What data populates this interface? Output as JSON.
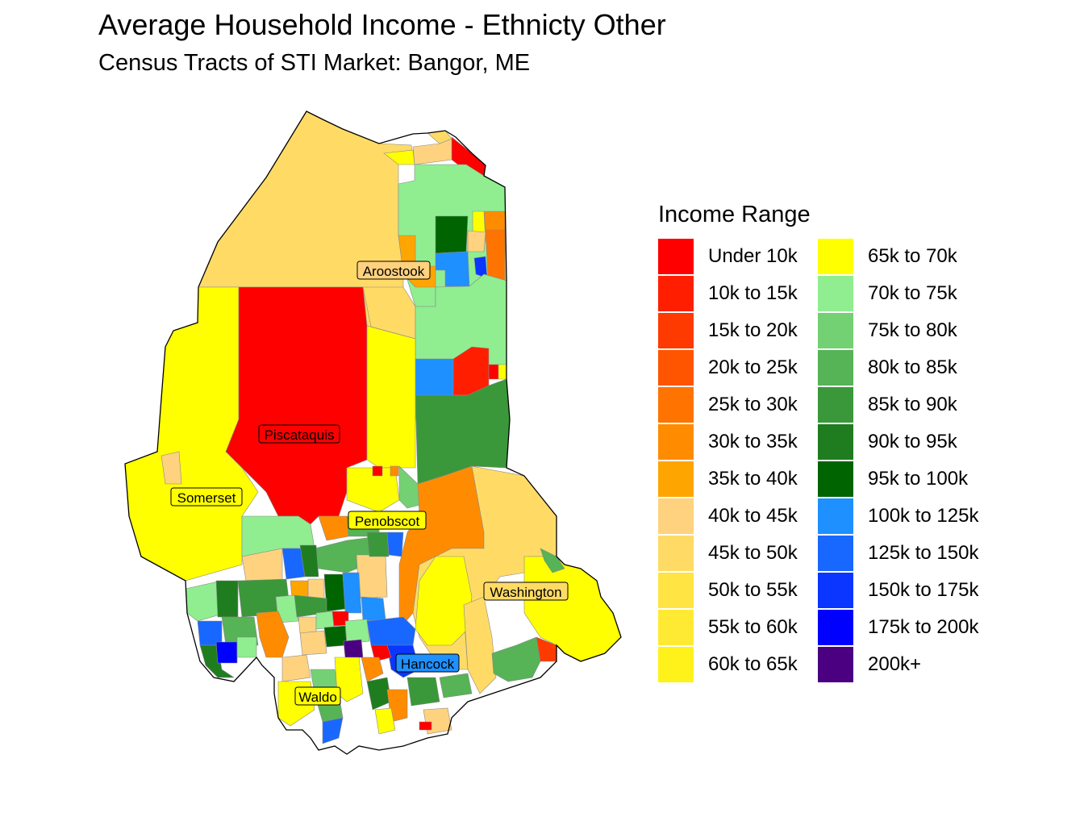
{
  "title": "Average Household Income - Ethnicty Other",
  "subtitle": "Census Tracts of STI Market: Bangor, ME",
  "legend": {
    "title": "Income Range",
    "items": [
      {
        "label": "Under 10k",
        "color": "#ff0000"
      },
      {
        "label": "10k to 15k",
        "color": "#ff1f00"
      },
      {
        "label": "15k to 20k",
        "color": "#ff3a00"
      },
      {
        "label": "20k to 25k",
        "color": "#ff5400"
      },
      {
        "label": "25k to 30k",
        "color": "#ff7300"
      },
      {
        "label": "30k to 35k",
        "color": "#ff8c00"
      },
      {
        "label": "35k to 40k",
        "color": "#ffa500"
      },
      {
        "label": "40k to 45k",
        "color": "#ffd27f"
      },
      {
        "label": "45k to 50k",
        "color": "#ffdb66"
      },
      {
        "label": "50k to 55k",
        "color": "#ffe444"
      },
      {
        "label": "55k to 60k",
        "color": "#ffea33"
      },
      {
        "label": "60k to 65k",
        "color": "#fff21a"
      },
      {
        "label": "65k to 70k",
        "color": "#ffff00"
      },
      {
        "label": "70k to 75k",
        "color": "#90ee90"
      },
      {
        "label": "75k to 80k",
        "color": "#73d173"
      },
      {
        "label": "80k to 85k",
        "color": "#56b356"
      },
      {
        "label": "85k to 90k",
        "color": "#3a983a"
      },
      {
        "label": "90k to 95k",
        "color": "#1f7d1f"
      },
      {
        "label": "95k to 100k",
        "color": "#006400"
      },
      {
        "label": "100k to 125k",
        "color": "#1e90ff"
      },
      {
        "label": "125k to 150k",
        "color": "#1868ff"
      },
      {
        "label": "150k to 175k",
        "color": "#0a36ff"
      },
      {
        "label": "175k to 200k",
        "color": "#0000ff"
      },
      {
        "label": "200k+",
        "color": "#4b0082"
      }
    ]
  },
  "counties": [
    "Aroostook",
    "Piscataquis",
    "Somerset",
    "Penobscot",
    "Washington",
    "Hancock",
    "Waldo"
  ]
}
